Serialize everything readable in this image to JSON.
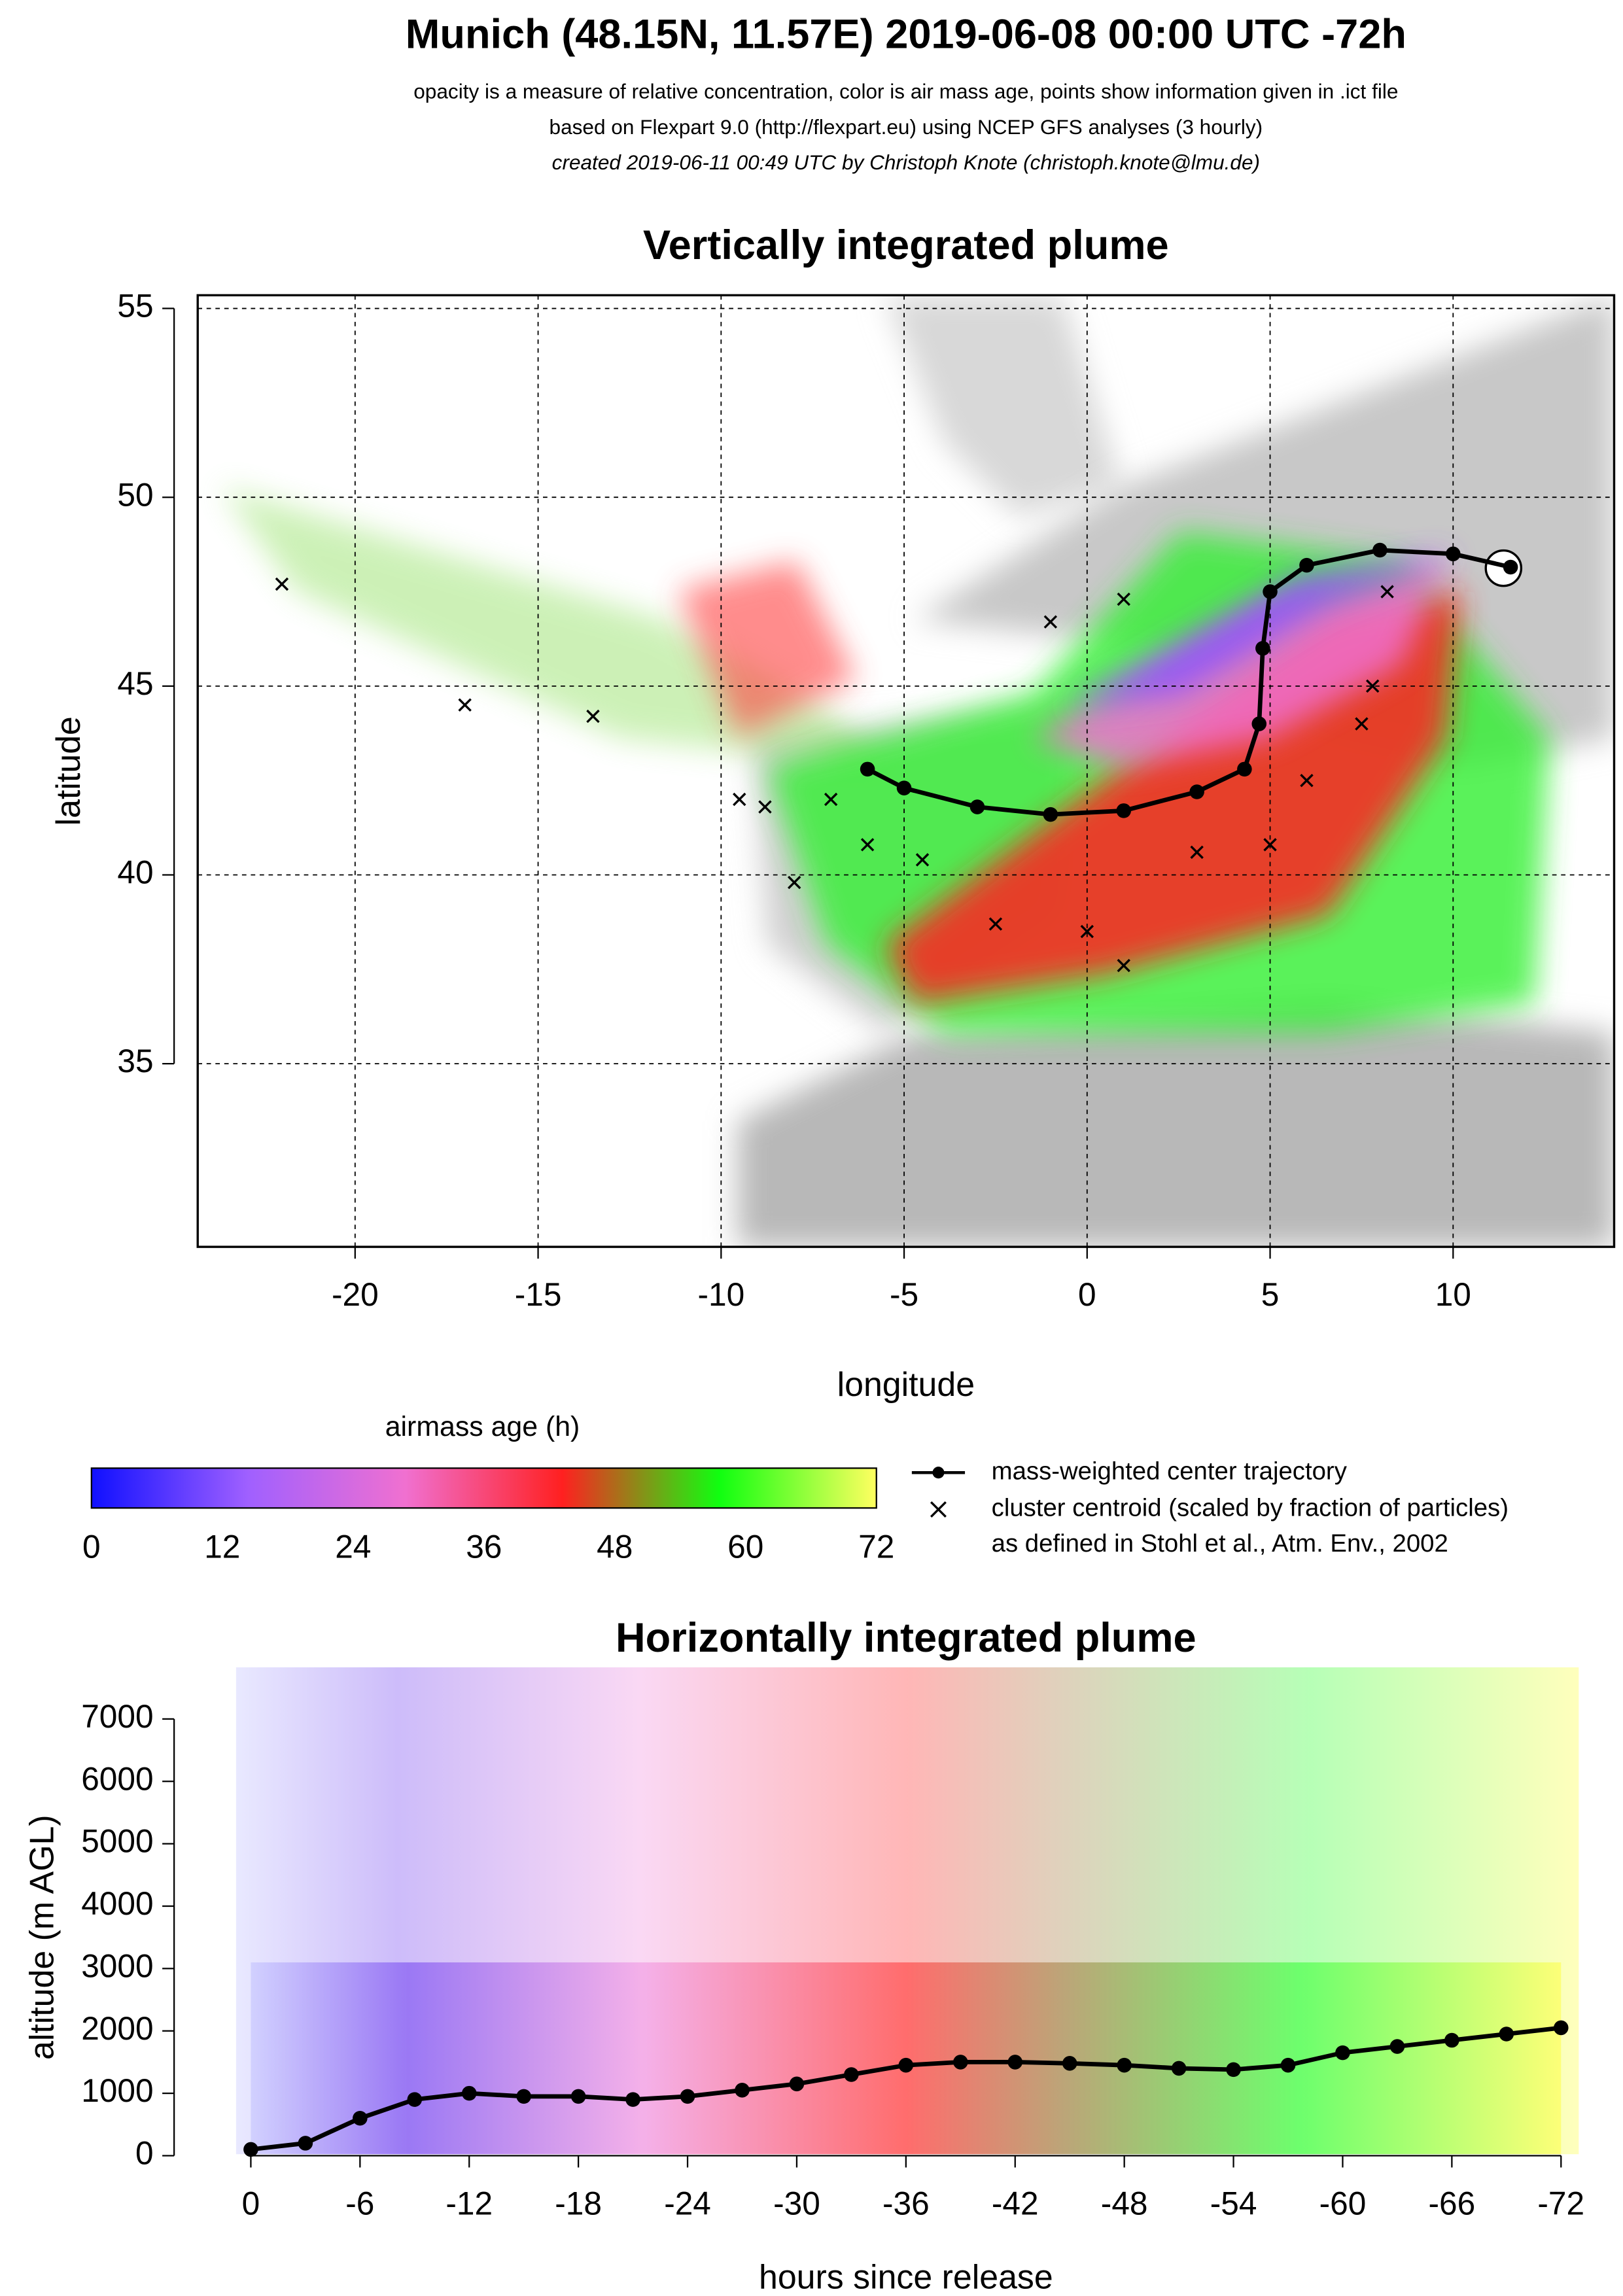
{
  "header": {
    "title": "Munich (48.15N, 11.57E) 2019-06-08 00:00 UTC -72h",
    "lines": [
      "opacity is a measure of relative concentration, color is air mass age, points show information given in .ict file",
      "based on Flexpart 9.0 (http://flexpart.eu) using NCEP GFS analyses (3 hourly)",
      "created 2019-06-11 00:49 UTC by Christoph Knote (christoph.knote@lmu.de)"
    ]
  },
  "chart_data": [
    {
      "type": "map",
      "title": "Vertically integrated plume",
      "xlabel": "longitude",
      "ylabel": "latitude",
      "xlim": [
        -24.3,
        14.4
      ],
      "ylim": [
        30.15,
        55.35
      ],
      "xticks": [
        -20,
        -15,
        -10,
        -5,
        0,
        5,
        10
      ],
      "yticks": [
        35,
        40,
        45,
        50,
        55
      ],
      "grid": true,
      "series": [
        {
          "name": "mass-weighted center trajectory",
          "color": "#000000",
          "marker": "dot",
          "x": [
            11.57,
            10,
            8,
            6,
            5,
            4.8,
            4.7,
            4.3,
            3,
            1,
            -1,
            -3,
            -5,
            -6
          ],
          "y": [
            48.15,
            48.5,
            48.6,
            48.2,
            47.5,
            46,
            44,
            42.8,
            42.2,
            41.7,
            41.6,
            41.8,
            42.3,
            42.8
          ]
        },
        {
          "name": "cluster centroid (scaled by fraction of particles)",
          "color": "#000000",
          "marker": "x",
          "x": [
            -22,
            -17,
            -13.5,
            -9.5,
            -8.8,
            -7,
            -6,
            -4.5,
            -8,
            -2.5,
            0,
            1,
            3,
            5,
            6,
            7.5,
            7.8,
            8.2,
            -1,
            1
          ],
          "y": [
            47.7,
            44.5,
            44.2,
            42,
            41.8,
            42,
            40.8,
            40.4,
            39.8,
            38.7,
            38.5,
            37.6,
            40.6,
            40.8,
            42.5,
            44,
            45,
            47.5,
            46.7,
            47.3
          ]
        }
      ],
      "colorbar": {
        "title": "airmass age (h)",
        "lim": [
          0,
          72
        ],
        "ticks": [
          0,
          12,
          24,
          36,
          48,
          60,
          72
        ],
        "colors": [
          "#1010ff",
          "#a060ff",
          "#f070d0",
          "#ff2020",
          "#10ff10",
          "#ffff60"
        ]
      },
      "legend_note": "as defined in Stohl et al., Atm. Env., 2002"
    },
    {
      "type": "line",
      "title": "Horizontally integrated plume",
      "xlabel": "hours since release",
      "ylabel": "altitude (m AGL)",
      "xlim": [
        0,
        -72
      ],
      "ylim": [
        0,
        7000
      ],
      "xticks": [
        0,
        -6,
        -12,
        -18,
        -24,
        -30,
        -36,
        -42,
        -48,
        -54,
        -60,
        -66,
        -72
      ],
      "yticks": [
        0,
        1000,
        2000,
        3000,
        4000,
        5000,
        6000,
        7000
      ],
      "series": [
        {
          "color": "#000000",
          "x": [
            0,
            -3,
            -6,
            -9,
            -12,
            -15,
            -18,
            -21,
            -24,
            -27,
            -30,
            -33,
            -36,
            -39,
            -42,
            -45,
            -48,
            -51,
            -54,
            -57,
            -60,
            -63,
            -66,
            -69,
            -72
          ],
          "y": [
            100,
            200,
            600,
            900,
            1000,
            950,
            950,
            900,
            950,
            1050,
            1150,
            1300,
            1450,
            1500,
            1500,
            1480,
            1450,
            1400,
            1380,
            1450,
            1650,
            1750,
            1850,
            1950,
            2050
          ]
        }
      ]
    }
  ]
}
